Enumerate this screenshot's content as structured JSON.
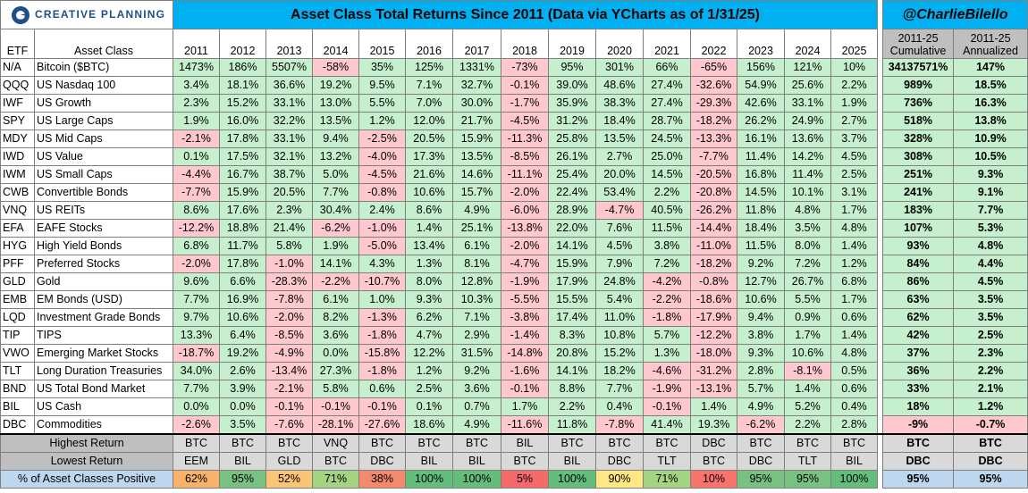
{
  "header": {
    "logo_text": "CREATIVE PLANNING",
    "title": "Asset Class Total Returns Since 2011 (Data via YCharts as of 1/31/25)",
    "handle": "@CharlieBilello"
  },
  "columns": {
    "etf": "ETF",
    "asset_class": "Asset Class",
    "years": [
      "2011",
      "2012",
      "2013",
      "2014",
      "2015",
      "2016",
      "2017",
      "2018",
      "2019",
      "2020",
      "2021",
      "2022",
      "2023",
      "2024",
      "2025"
    ],
    "cumulative": [
      "2011-25",
      "Cumulative"
    ],
    "annualized": [
      "2011-25",
      "Annualized"
    ]
  },
  "colors": {
    "title_bg": "#00b0f0",
    "positive": "#c6efce",
    "negative": "#ffc7ce",
    "summary_header": "#bfbfbf",
    "footer_label": "#bfbfbf",
    "footer_cell": "#d9d9d9",
    "footer_bottom": "#bdd7ee",
    "brand": "#1f4e8c"
  },
  "chart_data": {
    "type": "table",
    "title": "Asset Class Total Returns Since 2011 (Data via YCharts as of 1/31/25)",
    "rows": [
      {
        "etf": "N/A",
        "name": "Bitcoin ($BTC)",
        "values": [
          "1473%",
          "186%",
          "5507%",
          "-58%",
          "35%",
          "125%",
          "1331%",
          "-73%",
          "95%",
          "301%",
          "66%",
          "-65%",
          "156%",
          "121%",
          "10%"
        ],
        "cumulative": "34137571%",
        "annualized": "147%"
      },
      {
        "etf": "QQQ",
        "name": "US Nasdaq 100",
        "values": [
          "3.4%",
          "18.1%",
          "36.6%",
          "19.2%",
          "9.5%",
          "7.1%",
          "32.7%",
          "-0.1%",
          "39.0%",
          "48.6%",
          "27.4%",
          "-32.6%",
          "54.9%",
          "25.6%",
          "2.2%"
        ],
        "cumulative": "989%",
        "annualized": "18.5%"
      },
      {
        "etf": "IWF",
        "name": "US Growth",
        "values": [
          "2.3%",
          "15.2%",
          "33.1%",
          "13.0%",
          "5.5%",
          "7.0%",
          "30.0%",
          "-1.7%",
          "35.9%",
          "38.3%",
          "27.4%",
          "-29.3%",
          "42.6%",
          "33.1%",
          "1.9%"
        ],
        "cumulative": "736%",
        "annualized": "16.3%"
      },
      {
        "etf": "SPY",
        "name": "US Large Caps",
        "values": [
          "1.9%",
          "16.0%",
          "32.2%",
          "13.5%",
          "1.2%",
          "12.0%",
          "21.7%",
          "-4.5%",
          "31.2%",
          "18.4%",
          "28.7%",
          "-18.2%",
          "26.2%",
          "24.9%",
          "2.7%"
        ],
        "cumulative": "518%",
        "annualized": "13.8%"
      },
      {
        "etf": "MDY",
        "name": "US Mid Caps",
        "values": [
          "-2.1%",
          "17.8%",
          "33.1%",
          "9.4%",
          "-2.5%",
          "20.5%",
          "15.9%",
          "-11.3%",
          "25.8%",
          "13.5%",
          "24.5%",
          "-13.3%",
          "16.1%",
          "13.6%",
          "3.7%"
        ],
        "cumulative": "328%",
        "annualized": "10.9%"
      },
      {
        "etf": "IWD",
        "name": "US Value",
        "values": [
          "0.1%",
          "17.5%",
          "32.1%",
          "13.2%",
          "-4.0%",
          "17.3%",
          "13.5%",
          "-8.5%",
          "26.1%",
          "2.7%",
          "25.0%",
          "-7.7%",
          "11.4%",
          "14.2%",
          "4.5%"
        ],
        "cumulative": "308%",
        "annualized": "10.5%"
      },
      {
        "etf": "IWM",
        "name": "US Small Caps",
        "values": [
          "-4.4%",
          "16.7%",
          "38.7%",
          "5.0%",
          "-4.5%",
          "21.6%",
          "14.6%",
          "-11.1%",
          "25.4%",
          "20.0%",
          "14.5%",
          "-20.5%",
          "16.8%",
          "11.4%",
          "2.5%"
        ],
        "cumulative": "251%",
        "annualized": "9.3%"
      },
      {
        "etf": "CWB",
        "name": "Convertible Bonds",
        "values": [
          "-7.7%",
          "15.9%",
          "20.5%",
          "7.7%",
          "-0.8%",
          "10.6%",
          "15.7%",
          "-2.0%",
          "22.4%",
          "53.4%",
          "2.2%",
          "-20.8%",
          "14.5%",
          "10.1%",
          "3.1%"
        ],
        "cumulative": "241%",
        "annualized": "9.1%"
      },
      {
        "etf": "VNQ",
        "name": "US REITs",
        "values": [
          "8.6%",
          "17.6%",
          "2.3%",
          "30.4%",
          "2.4%",
          "8.6%",
          "4.9%",
          "-6.0%",
          "28.9%",
          "-4.7%",
          "40.5%",
          "-26.2%",
          "11.8%",
          "4.8%",
          "1.7%"
        ],
        "cumulative": "183%",
        "annualized": "7.7%"
      },
      {
        "etf": "EFA",
        "name": "EAFE Stocks",
        "values": [
          "-12.2%",
          "18.8%",
          "21.4%",
          "-6.2%",
          "-1.0%",
          "1.4%",
          "25.1%",
          "-13.8%",
          "22.0%",
          "7.6%",
          "11.5%",
          "-14.4%",
          "18.4%",
          "3.5%",
          "4.8%"
        ],
        "cumulative": "107%",
        "annualized": "5.3%"
      },
      {
        "etf": "HYG",
        "name": "High Yield Bonds",
        "values": [
          "6.8%",
          "11.7%",
          "5.8%",
          "1.9%",
          "-5.0%",
          "13.4%",
          "6.1%",
          "-2.0%",
          "14.1%",
          "4.5%",
          "3.8%",
          "-11.0%",
          "11.5%",
          "8.0%",
          "1.4%"
        ],
        "cumulative": "93%",
        "annualized": "4.8%"
      },
      {
        "etf": "PFF",
        "name": "Preferred Stocks",
        "values": [
          "-2.0%",
          "17.8%",
          "-1.0%",
          "14.1%",
          "4.3%",
          "1.3%",
          "8.1%",
          "-4.7%",
          "15.9%",
          "7.9%",
          "7.2%",
          "-18.2%",
          "9.2%",
          "7.2%",
          "1.2%"
        ],
        "cumulative": "84%",
        "annualized": "4.4%"
      },
      {
        "etf": "GLD",
        "name": "Gold",
        "values": [
          "9.6%",
          "6.6%",
          "-28.3%",
          "-2.2%",
          "-10.7%",
          "8.0%",
          "12.8%",
          "-1.9%",
          "17.9%",
          "24.8%",
          "-4.2%",
          "-0.8%",
          "12.7%",
          "26.7%",
          "6.8%"
        ],
        "cumulative": "86%",
        "annualized": "4.5%"
      },
      {
        "etf": "EMB",
        "name": "EM Bonds (USD)",
        "values": [
          "7.7%",
          "16.9%",
          "-7.8%",
          "6.1%",
          "1.0%",
          "9.3%",
          "10.3%",
          "-5.5%",
          "15.5%",
          "5.4%",
          "-2.2%",
          "-18.6%",
          "10.6%",
          "5.5%",
          "1.7%"
        ],
        "cumulative": "63%",
        "annualized": "3.5%"
      },
      {
        "etf": "LQD",
        "name": "Investment Grade Bonds",
        "values": [
          "9.7%",
          "10.6%",
          "-2.0%",
          "8.2%",
          "-1.3%",
          "6.2%",
          "7.1%",
          "-3.8%",
          "17.4%",
          "11.0%",
          "-1.8%",
          "-17.9%",
          "9.4%",
          "0.9%",
          "0.6%"
        ],
        "cumulative": "62%",
        "annualized": "3.5%"
      },
      {
        "etf": "TIP",
        "name": "TIPS",
        "values": [
          "13.3%",
          "6.4%",
          "-8.5%",
          "3.6%",
          "-1.8%",
          "4.7%",
          "2.9%",
          "-1.4%",
          "8.3%",
          "10.8%",
          "5.7%",
          "-12.2%",
          "3.8%",
          "1.7%",
          "1.4%"
        ],
        "cumulative": "42%",
        "annualized": "2.5%"
      },
      {
        "etf": "VWO",
        "name": "Emerging Market Stocks",
        "values": [
          "-18.7%",
          "19.2%",
          "-4.9%",
          "0.0%",
          "-15.8%",
          "12.2%",
          "31.5%",
          "-14.8%",
          "20.8%",
          "15.2%",
          "1.3%",
          "-18.0%",
          "9.3%",
          "10.6%",
          "4.8%"
        ],
        "cumulative": "37%",
        "annualized": "2.3%"
      },
      {
        "etf": "TLT",
        "name": "Long Duration Treasuries",
        "values": [
          "34.0%",
          "2.6%",
          "-13.4%",
          "27.3%",
          "-1.8%",
          "1.2%",
          "9.2%",
          "-1.6%",
          "14.1%",
          "18.2%",
          "-4.6%",
          "-31.2%",
          "2.8%",
          "-8.1%",
          "0.5%"
        ],
        "cumulative": "36%",
        "annualized": "2.2%"
      },
      {
        "etf": "BND",
        "name": "US Total Bond Market",
        "values": [
          "7.7%",
          "3.9%",
          "-2.1%",
          "5.8%",
          "0.6%",
          "2.5%",
          "3.6%",
          "-0.1%",
          "8.8%",
          "7.7%",
          "-1.9%",
          "-13.1%",
          "5.7%",
          "1.4%",
          "0.6%"
        ],
        "cumulative": "33%",
        "annualized": "2.1%"
      },
      {
        "etf": "BIL",
        "name": "US Cash",
        "values": [
          "0.0%",
          "0.0%",
          "-0.1%",
          "-0.1%",
          "-0.1%",
          "0.1%",
          "0.7%",
          "1.7%",
          "2.2%",
          "0.4%",
          "-0.1%",
          "1.4%",
          "4.9%",
          "5.2%",
          "0.4%"
        ],
        "cumulative": "18%",
        "annualized": "1.2%"
      },
      {
        "etf": "DBC",
        "name": "Commodities",
        "values": [
          "-2.6%",
          "3.5%",
          "-7.6%",
          "-28.1%",
          "-27.6%",
          "18.6%",
          "4.9%",
          "-11.6%",
          "11.8%",
          "-7.8%",
          "41.4%",
          "19.3%",
          "-6.2%",
          "2.2%",
          "2.8%"
        ],
        "cumulative": "-9%",
        "annualized": "-0.7%"
      }
    ],
    "footer": {
      "highest": {
        "label": "Highest Return",
        "values": [
          "BTC",
          "BTC",
          "BTC",
          "VNQ",
          "BTC",
          "BTC",
          "BTC",
          "BIL",
          "BTC",
          "BTC",
          "BTC",
          "DBC",
          "BTC",
          "BTC",
          "BTC"
        ],
        "cumulative": "BTC",
        "annualized": "BTC"
      },
      "lowest": {
        "label": "Lowest Return",
        "values": [
          "EEM",
          "BIL",
          "GLD",
          "BTC",
          "DBC",
          "BIL",
          "BIL",
          "BTC",
          "BIL",
          "DBC",
          "TLT",
          "BTC",
          "DBC",
          "TLT",
          "BIL"
        ],
        "cumulative": "DBC",
        "annualized": "DBC"
      },
      "positive": {
        "label": "% of Asset Classes Positive",
        "values": [
          "62%",
          "95%",
          "52%",
          "71%",
          "38%",
          "100%",
          "100%",
          "5%",
          "100%",
          "90%",
          "71%",
          "10%",
          "95%",
          "95%",
          "100%"
        ],
        "cumulative": "95%",
        "annualized": "95%"
      }
    },
    "footer_positive_colors": [
      "#f8b26a",
      "#77c280",
      "#fbc576",
      "#a4d381",
      "#f48a6c",
      "#63be7b",
      "#63be7b",
      "#f8696b",
      "#63be7b",
      "#ffe784",
      "#a4d381",
      "#f8736c",
      "#77c280",
      "#77c280",
      "#63be7b"
    ]
  }
}
